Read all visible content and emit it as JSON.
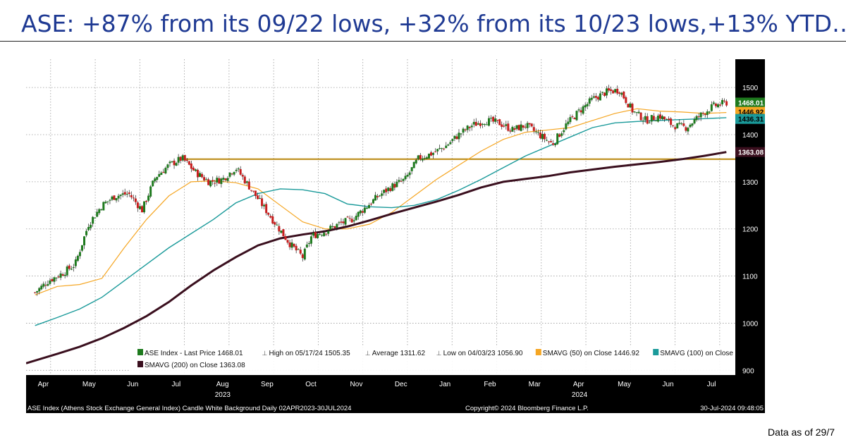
{
  "slide": {
    "title": "ASE: +87% from its 09/22 lows, +32% from its 10/23 lows,+13% YTD…",
    "footer_note": "Data as of 29/7"
  },
  "colors": {
    "candle_up": "#1e7a1e",
    "candle_down": "#c81e1e",
    "sma50": "#f5a623",
    "sma100": "#1a9a9a",
    "sma200": "#3a0f1e",
    "support_line": "#b8860b",
    "axis_panel": "#000000",
    "title": "#1f3a93"
  },
  "chart_data": {
    "type": "line",
    "title": "",
    "y_ticks": [
      900,
      1000,
      1100,
      1200,
      1300,
      1400,
      1500
    ],
    "ylim": [
      890,
      1560
    ],
    "x_month_labels": [
      "Apr",
      "May",
      "Jun",
      "Jul",
      "Aug",
      "Sep",
      "Oct",
      "Nov",
      "Dec",
      "Jan",
      "Feb",
      "Mar",
      "Apr",
      "May",
      "Jun",
      "Jul"
    ],
    "x_year_labels": [
      "2023",
      "2024"
    ],
    "x_month_positions": [
      0,
      1,
      2,
      3,
      4,
      5,
      6,
      7,
      8,
      9,
      10,
      11,
      12,
      13,
      14,
      15
    ],
    "xlim": [
      -0.2,
      15.7
    ],
    "series": [
      {
        "name": "ASE Index - Last Price",
        "points": [
          [
            0,
            1065
          ],
          [
            0.3,
            1090
          ],
          [
            0.6,
            1105
          ],
          [
            0.9,
            1125
          ],
          [
            1.2,
            1210
          ],
          [
            1.5,
            1250
          ],
          [
            1.8,
            1270
          ],
          [
            2.1,
            1275
          ],
          [
            2.4,
            1240
          ],
          [
            2.7,
            1310
          ],
          [
            3.0,
            1335
          ],
          [
            3.3,
            1350
          ],
          [
            3.6,
            1320
          ],
          [
            3.9,
            1300
          ],
          [
            4.2,
            1305
          ],
          [
            4.5,
            1330
          ],
          [
            4.8,
            1290
          ],
          [
            5.1,
            1250
          ],
          [
            5.4,
            1210
          ],
          [
            5.7,
            1170
          ],
          [
            6.0,
            1140
          ],
          [
            6.2,
            1185
          ],
          [
            6.5,
            1195
          ],
          [
            6.8,
            1210
          ],
          [
            7.1,
            1220
          ],
          [
            7.4,
            1245
          ],
          [
            7.7,
            1270
          ],
          [
            8.0,
            1290
          ],
          [
            8.3,
            1305
          ],
          [
            8.6,
            1350
          ],
          [
            8.9,
            1360
          ],
          [
            9.2,
            1375
          ],
          [
            9.5,
            1400
          ],
          [
            9.8,
            1420
          ],
          [
            10.1,
            1430
          ],
          [
            10.4,
            1425
          ],
          [
            10.7,
            1410
          ],
          [
            11.0,
            1420
          ],
          [
            11.3,
            1400
          ],
          [
            11.6,
            1380
          ],
          [
            11.9,
            1420
          ],
          [
            12.2,
            1450
          ],
          [
            12.5,
            1475
          ],
          [
            12.8,
            1490
          ],
          [
            13.1,
            1495
          ],
          [
            13.4,
            1450
          ],
          [
            13.7,
            1430
          ],
          [
            14.0,
            1440
          ],
          [
            14.3,
            1420
          ],
          [
            14.6,
            1415
          ],
          [
            14.9,
            1440
          ],
          [
            15.2,
            1460
          ],
          [
            15.5,
            1468
          ]
        ]
      },
      {
        "name": "SMAVG (50) on Close",
        "points": [
          [
            0,
            1060
          ],
          [
            0.5,
            1078
          ],
          [
            1.0,
            1082
          ],
          [
            1.5,
            1095
          ],
          [
            2.0,
            1160
          ],
          [
            2.5,
            1220
          ],
          [
            3.0,
            1270
          ],
          [
            3.5,
            1300
          ],
          [
            4.0,
            1302
          ],
          [
            4.5,
            1298
          ],
          [
            5.0,
            1285
          ],
          [
            5.5,
            1250
          ],
          [
            6.0,
            1215
          ],
          [
            6.5,
            1200
          ],
          [
            7.0,
            1200
          ],
          [
            7.5,
            1210
          ],
          [
            8.0,
            1235
          ],
          [
            8.5,
            1270
          ],
          [
            9.0,
            1305
          ],
          [
            9.5,
            1335
          ],
          [
            10.0,
            1365
          ],
          [
            10.5,
            1390
          ],
          [
            11.0,
            1405
          ],
          [
            11.5,
            1410
          ],
          [
            12.0,
            1415
          ],
          [
            12.5,
            1430
          ],
          [
            13.0,
            1445
          ],
          [
            13.5,
            1455
          ],
          [
            14.0,
            1450
          ],
          [
            14.5,
            1448
          ],
          [
            15.0,
            1445
          ],
          [
            15.5,
            1447
          ]
        ]
      },
      {
        "name": "SMAVG (100) on Close",
        "points": [
          [
            0,
            995
          ],
          [
            0.5,
            1012
          ],
          [
            1.0,
            1030
          ],
          [
            1.5,
            1055
          ],
          [
            2.0,
            1090
          ],
          [
            2.5,
            1125
          ],
          [
            3.0,
            1160
          ],
          [
            3.5,
            1190
          ],
          [
            4.0,
            1220
          ],
          [
            4.5,
            1255
          ],
          [
            5.0,
            1275
          ],
          [
            5.5,
            1285
          ],
          [
            6.0,
            1283
          ],
          [
            6.5,
            1275
          ],
          [
            7.0,
            1253
          ],
          [
            7.5,
            1247
          ],
          [
            8.0,
            1245
          ],
          [
            8.5,
            1250
          ],
          [
            9.0,
            1262
          ],
          [
            9.5,
            1282
          ],
          [
            10.0,
            1305
          ],
          [
            10.5,
            1330
          ],
          [
            11.0,
            1355
          ],
          [
            11.5,
            1375
          ],
          [
            12.0,
            1395
          ],
          [
            12.5,
            1415
          ],
          [
            13.0,
            1425
          ],
          [
            13.5,
            1428
          ],
          [
            14.0,
            1430
          ],
          [
            14.5,
            1432
          ],
          [
            15.0,
            1434
          ],
          [
            15.5,
            1436
          ]
        ]
      },
      {
        "name": "SMAVG (200) on Close",
        "points": [
          [
            -0.2,
            915
          ],
          [
            0.5,
            935
          ],
          [
            1.0,
            950
          ],
          [
            1.5,
            968
          ],
          [
            2.0,
            990
          ],
          [
            2.5,
            1015
          ],
          [
            3.0,
            1045
          ],
          [
            3.5,
            1080
          ],
          [
            4.0,
            1112
          ],
          [
            4.5,
            1140
          ],
          [
            5.0,
            1165
          ],
          [
            5.5,
            1180
          ],
          [
            6.0,
            1188
          ],
          [
            6.5,
            1195
          ],
          [
            7.0,
            1205
          ],
          [
            7.5,
            1218
          ],
          [
            8.0,
            1232
          ],
          [
            8.5,
            1245
          ],
          [
            9.0,
            1258
          ],
          [
            9.5,
            1272
          ],
          [
            10.0,
            1288
          ],
          [
            10.5,
            1300
          ],
          [
            11.0,
            1306
          ],
          [
            11.5,
            1312
          ],
          [
            12.0,
            1320
          ],
          [
            12.5,
            1326
          ],
          [
            13.0,
            1332
          ],
          [
            13.5,
            1337
          ],
          [
            14.0,
            1342
          ],
          [
            14.5,
            1348
          ],
          [
            15.0,
            1355
          ],
          [
            15.5,
            1363
          ]
        ]
      }
    ],
    "support_level": 1348,
    "price_tags": [
      {
        "label": "1468.01",
        "value": 1468.01,
        "color": "#1e7a1e",
        "text_color": "#ffffff"
      },
      {
        "label": "1446.92",
        "value": 1446.92,
        "color": "#f5a623",
        "text_color": "#000000"
      },
      {
        "label": "1436.31",
        "value": 1436.31,
        "color": "#1a9a9a",
        "text_color": "#000000"
      },
      {
        "label": "1363.08",
        "value": 1363.08,
        "color": "#3a0f1e",
        "text_color": "#ffffff"
      }
    ],
    "legend": {
      "placement": "bottom-left",
      "row1": [
        {
          "text": "ASE Index - Last Price  1468.01",
          "swatch": "#1e7a1e"
        },
        {
          "text": "High on 05/17/24  1505.35",
          "swatch": ""
        },
        {
          "text": "Average  1311.62",
          "swatch": ""
        },
        {
          "text": "Low on 04/03/23  1056.90",
          "swatch": ""
        },
        {
          "text": "SMAVG (50)  on Close  1446.92",
          "swatch": "#f5a623"
        },
        {
          "text": "SMAVG (100)  on Close  1436.31",
          "swatch": "#1a9a9a"
        }
      ],
      "row2": [
        {
          "text": "SMAVG (200)  on Close  1363.08",
          "swatch": "#3a0f1e"
        }
      ]
    },
    "bottom_bar": {
      "left": "ASE Index (Athens Stock Exchange General Index) Candle White Background  Daily 02APR2023-30JUL2024",
      "center": "Copyright© 2024 Bloomberg Finance L.P.",
      "right": "30-Jul-2024 09:48:05"
    },
    "grid": true
  }
}
